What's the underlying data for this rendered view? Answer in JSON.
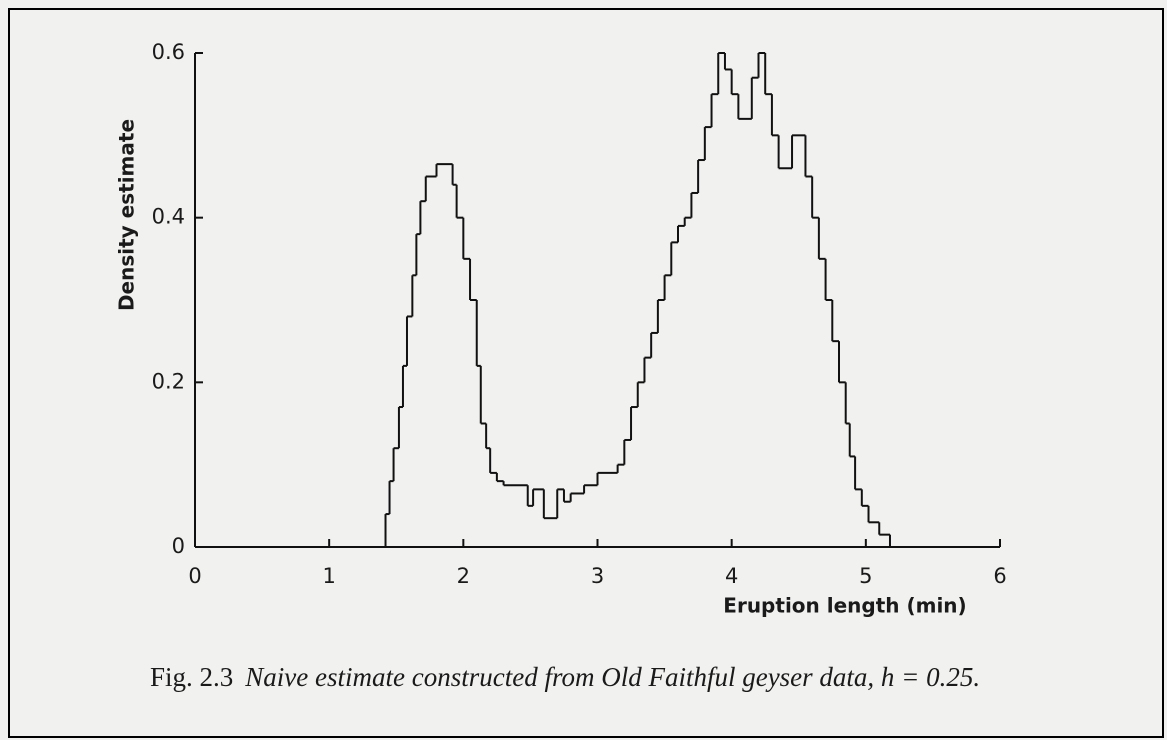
{
  "chart_data": {
    "type": "step",
    "caption_label": "Fig. 2.3",
    "caption": "Naive estimate constructed from Old Faithful geyser data, h = 0.25.",
    "xlabel": "Eruption length (min)",
    "ylabel": "Density estimate",
    "color": "#111111",
    "xlim": [
      0,
      6
    ],
    "xticks": [
      0,
      1,
      2,
      3,
      4,
      5,
      6
    ],
    "ylim": [
      0,
      0.6
    ],
    "yticks": [
      0,
      0.2,
      0.4,
      0.6
    ],
    "x": [
      0,
      1.42,
      1.45,
      1.48,
      1.52,
      1.55,
      1.58,
      1.62,
      1.65,
      1.68,
      1.72,
      1.8,
      1.92,
      1.95,
      2.0,
      2.05,
      2.1,
      2.13,
      2.17,
      2.2,
      2.25,
      2.3,
      2.48,
      2.52,
      2.6,
      2.7,
      2.75,
      2.8,
      2.9,
      3.0,
      3.15,
      3.2,
      3.25,
      3.3,
      3.35,
      3.4,
      3.45,
      3.5,
      3.55,
      3.6,
      3.65,
      3.7,
      3.75,
      3.8,
      3.85,
      3.9,
      3.95,
      4.0,
      4.05,
      4.15,
      4.2,
      4.25,
      4.3,
      4.35,
      4.45,
      4.55,
      4.6,
      4.65,
      4.7,
      4.75,
      4.8,
      4.85,
      4.88,
      4.92,
      4.97,
      5.02,
      5.1,
      5.18
    ],
    "values": [
      0,
      0.04,
      0.08,
      0.12,
      0.17,
      0.22,
      0.28,
      0.33,
      0.38,
      0.42,
      0.45,
      0.465,
      0.44,
      0.4,
      0.35,
      0.3,
      0.22,
      0.15,
      0.12,
      0.09,
      0.08,
      0.075,
      0.05,
      0.07,
      0.035,
      0.07,
      0.055,
      0.065,
      0.075,
      0.09,
      0.1,
      0.13,
      0.17,
      0.2,
      0.23,
      0.26,
      0.3,
      0.33,
      0.37,
      0.39,
      0.4,
      0.43,
      0.47,
      0.51,
      0.55,
      0.6,
      0.58,
      0.55,
      0.52,
      0.57,
      0.6,
      0.55,
      0.5,
      0.46,
      0.5,
      0.45,
      0.4,
      0.35,
      0.3,
      0.25,
      0.2,
      0.15,
      0.11,
      0.07,
      0.05,
      0.03,
      0.015,
      0
    ]
  }
}
